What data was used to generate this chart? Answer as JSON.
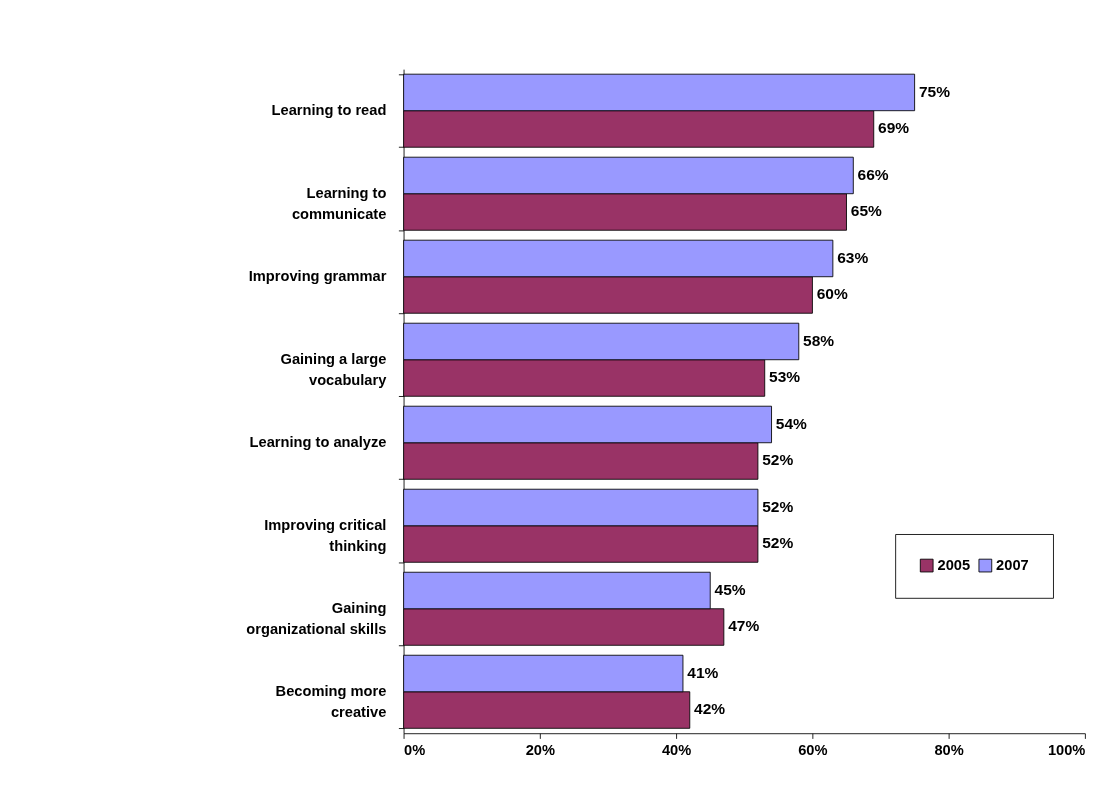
{
  "chart_data": {
    "type": "bar",
    "orientation": "horizontal",
    "categories": [
      "Learning to read",
      "Learning to communicate",
      "Improving grammar",
      "Gaining a large vocabulary",
      "Learning to analyze",
      "Improving critical thinking",
      "Gaining organizational skills",
      "Becoming more creative"
    ],
    "series": [
      {
        "name": "2005",
        "color": "#993366",
        "values": [
          69,
          65,
          60,
          53,
          52,
          52,
          47,
          42
        ],
        "value_labels": [
          "69%",
          "65%",
          "60%",
          "53%",
          "52%",
          "52%",
          "47%",
          "42%"
        ]
      },
      {
        "name": "2007",
        "color": "#9999ff",
        "values": [
          75,
          66,
          63,
          58,
          54,
          52,
          45,
          41
        ],
        "value_labels": [
          "75%",
          "66%",
          "63%",
          "58%",
          "54%",
          "52%",
          "45%",
          "41%"
        ]
      }
    ],
    "xlim": [
      0,
      100
    ],
    "xticks": [
      {
        "value": 0,
        "label": "0%"
      },
      {
        "value": 20,
        "label": "20%"
      },
      {
        "value": 40,
        "label": "40%"
      },
      {
        "value": 60,
        "label": "60%"
      },
      {
        "value": 80,
        "label": "80%"
      },
      {
        "value": 100,
        "label": "100%"
      }
    ],
    "grid": false,
    "legend": "bottom right"
  }
}
